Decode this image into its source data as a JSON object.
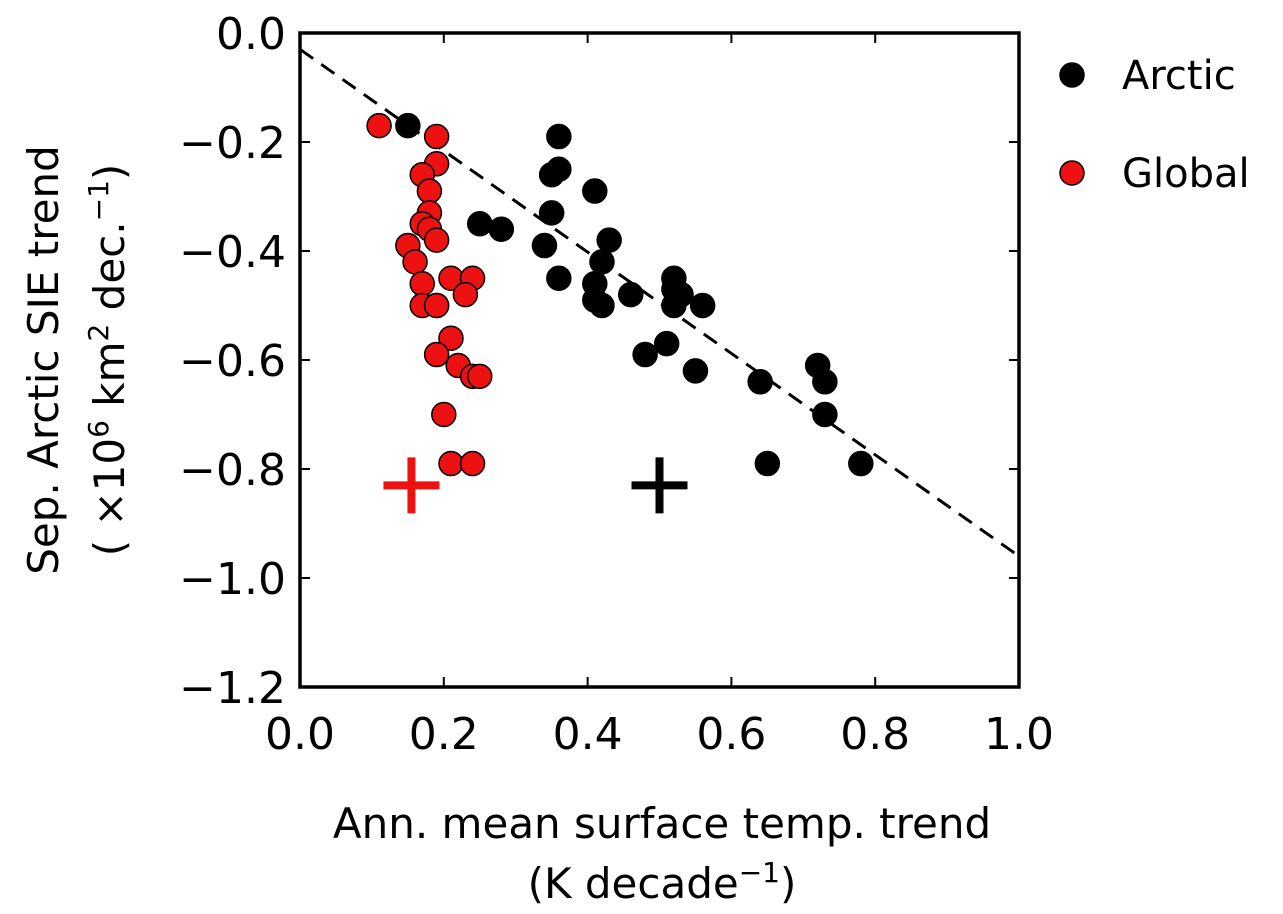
{
  "chart_data": {
    "type": "scatter",
    "xlabel_line1": "Ann. mean surface temp. trend",
    "xlabel_line2": {
      "open": "(K decade",
      "sup": "−1",
      "close": ")"
    },
    "ylabel_line1": "Sep. Arctic SIE trend",
    "ylabel_line2": {
      "open": "( ×10",
      "sup1": "6",
      "mid": "  km",
      "sup2": "2",
      "tail": "  dec.",
      "sup3": "−1",
      "close": ")"
    },
    "xlim": [
      0.0,
      1.0
    ],
    "ylim": [
      -1.2,
      0.0
    ],
    "x_ticks": [
      0.0,
      0.2,
      0.4,
      0.6,
      0.8,
      1.0
    ],
    "x_tick_labels": [
      "0.0",
      "0.2",
      "0.4",
      "0.6",
      "0.8",
      "1.0"
    ],
    "y_ticks": [
      0.0,
      -0.2,
      -0.4,
      -0.6,
      -0.8,
      -1.0,
      -1.2
    ],
    "y_tick_labels": [
      "0.0",
      "−0.2",
      "−0.4",
      "−0.6",
      "−0.8",
      "−1.0",
      "−1.2"
    ],
    "grid": false,
    "legend_position": "outside-top-right",
    "fit_line": {
      "style": "dashed",
      "color": "#000000",
      "x": [
        0.0,
        1.0
      ],
      "y": [
        -0.03,
        -0.96
      ]
    },
    "series": [
      {
        "name": "Arctic",
        "color": "#000000",
        "marker": "circle",
        "points": [
          [
            0.15,
            -0.17
          ],
          [
            0.25,
            -0.35
          ],
          [
            0.28,
            -0.36
          ],
          [
            0.36,
            -0.19
          ],
          [
            0.36,
            -0.25
          ],
          [
            0.35,
            -0.26
          ],
          [
            0.35,
            -0.33
          ],
          [
            0.34,
            -0.39
          ],
          [
            0.36,
            -0.45
          ],
          [
            0.41,
            -0.29
          ],
          [
            0.43,
            -0.38
          ],
          [
            0.42,
            -0.42
          ],
          [
            0.41,
            -0.46
          ],
          [
            0.42,
            -0.5
          ],
          [
            0.41,
            -0.49
          ],
          [
            0.46,
            -0.48
          ],
          [
            0.48,
            -0.59
          ],
          [
            0.51,
            -0.57
          ],
          [
            0.52,
            -0.45
          ],
          [
            0.52,
            -0.47
          ],
          [
            0.53,
            -0.48
          ],
          [
            0.52,
            -0.5
          ],
          [
            0.56,
            -0.5
          ],
          [
            0.55,
            -0.62
          ],
          [
            0.64,
            -0.64
          ],
          [
            0.65,
            -0.79
          ],
          [
            0.72,
            -0.61
          ],
          [
            0.73,
            -0.64
          ],
          [
            0.73,
            -0.7
          ],
          [
            0.78,
            -0.79
          ]
        ]
      },
      {
        "name": "Global",
        "color": "#ee1111",
        "marker": "circle",
        "points": [
          [
            0.11,
            -0.17
          ],
          [
            0.19,
            -0.19
          ],
          [
            0.19,
            -0.24
          ],
          [
            0.17,
            -0.26
          ],
          [
            0.18,
            -0.29
          ],
          [
            0.18,
            -0.33
          ],
          [
            0.17,
            -0.35
          ],
          [
            0.18,
            -0.36
          ],
          [
            0.19,
            -0.38
          ],
          [
            0.15,
            -0.39
          ],
          [
            0.16,
            -0.42
          ],
          [
            0.17,
            -0.46
          ],
          [
            0.21,
            -0.45
          ],
          [
            0.24,
            -0.45
          ],
          [
            0.17,
            -0.5
          ],
          [
            0.19,
            -0.5
          ],
          [
            0.19,
            -0.5
          ],
          [
            0.23,
            -0.48
          ],
          [
            0.21,
            -0.56
          ],
          [
            0.19,
            -0.59
          ],
          [
            0.22,
            -0.61
          ],
          [
            0.24,
            -0.63
          ],
          [
            0.25,
            -0.63
          ],
          [
            0.2,
            -0.7
          ],
          [
            0.21,
            -0.79
          ],
          [
            0.24,
            -0.79
          ]
        ]
      }
    ],
    "mean_markers": [
      {
        "color": "#ee1111",
        "marker": "plus",
        "x": 0.155,
        "y": -0.83
      },
      {
        "color": "#000000",
        "marker": "plus",
        "x": 0.5,
        "y": -0.83
      }
    ]
  }
}
